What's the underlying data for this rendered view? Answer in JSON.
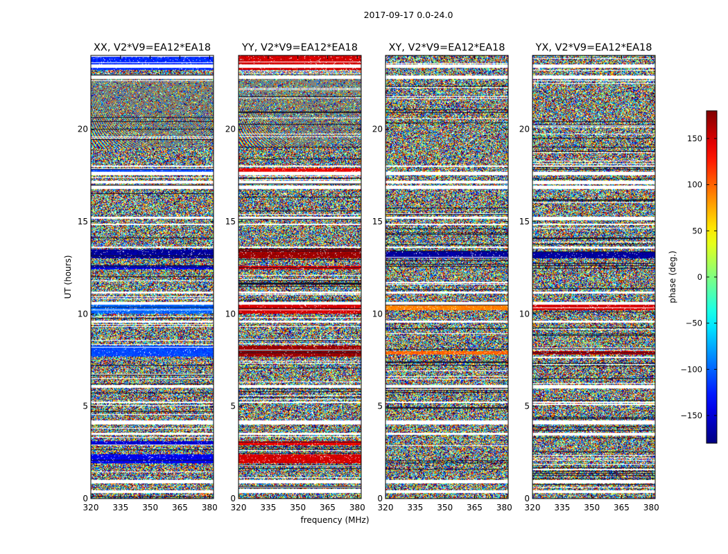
{
  "figure_title": "2017-09-17 0.0-24.0",
  "chart_data": {
    "type": "heatmap",
    "title": "2017-09-17 0.0-24.0",
    "xlabel": "frequency (MHz)",
    "ylabel": "UT (hours)",
    "xlim": [
      320,
      382
    ],
    "ylim": [
      0,
      24
    ],
    "xticks": [
      320,
      335,
      350,
      365,
      380
    ],
    "yticks": [
      0,
      5,
      10,
      15,
      20
    ],
    "colormap": "jet",
    "colorbar": {
      "label": "phase (deg.)",
      "range": [
        -180,
        180
      ],
      "ticks": [
        150,
        100,
        50,
        0,
        -50,
        -100,
        -150
      ],
      "tick_labels": [
        "150",
        "100",
        "50",
        "0",
        "−50",
        "−100",
        "−150"
      ]
    },
    "panels": [
      {
        "title": "XX, V2*V9=EA12*EA18",
        "show_ylabel": true,
        "show_xlabel": false,
        "coherent_bands": [
          {
            "t0": 23.2,
            "t1": 24.0,
            "phase": -120
          },
          {
            "t0": 17.7,
            "t1": 17.9,
            "phase": -110
          },
          {
            "t0": 13.0,
            "t1": 13.5,
            "phase": -170
          },
          {
            "t0": 12.4,
            "t1": 12.6,
            "phase": -140
          },
          {
            "t0": 10.0,
            "t1": 10.6,
            "phase": -100
          },
          {
            "t0": 7.7,
            "t1": 8.3,
            "phase": -110
          },
          {
            "t0": 2.9,
            "t1": 3.1,
            "phase": -150
          },
          {
            "t0": 1.9,
            "t1": 2.4,
            "phase": -140
          }
        ],
        "fringe_region": [
          19.0,
          23.0
        ]
      },
      {
        "title": "YY, V2*V9=EA12*EA18",
        "show_ylabel": false,
        "show_xlabel": true,
        "coherent_bands": [
          {
            "t0": 23.2,
            "t1": 24.0,
            "phase": 150
          },
          {
            "t0": 17.7,
            "t1": 17.9,
            "phase": 140
          },
          {
            "t0": 13.0,
            "t1": 13.5,
            "phase": 170
          },
          {
            "t0": 12.4,
            "t1": 12.6,
            "phase": 150
          },
          {
            "t0": 10.0,
            "t1": 10.6,
            "phase": 150
          },
          {
            "t0": 7.7,
            "t1": 8.3,
            "phase": 170
          },
          {
            "t0": 2.9,
            "t1": 3.1,
            "phase": 140
          },
          {
            "t0": 1.9,
            "t1": 2.4,
            "phase": 150
          }
        ],
        "fringe_region": [
          19.0,
          23.0
        ]
      },
      {
        "title": "XY, V2*V9=EA12*EA18",
        "show_ylabel": false,
        "show_xlabel": false,
        "coherent_bands": [
          {
            "t0": 13.0,
            "t1": 13.4,
            "phase": -170
          },
          {
            "t0": 10.2,
            "t1": 10.5,
            "phase": 90
          },
          {
            "t0": 7.8,
            "t1": 8.0,
            "phase": 100
          }
        ],
        "fringe_region": null
      },
      {
        "title": "YX, V2*V9=EA12*EA18",
        "show_ylabel": false,
        "show_xlabel": false,
        "coherent_bands": [
          {
            "t0": 13.0,
            "t1": 13.4,
            "phase": -170
          },
          {
            "t0": 10.2,
            "t1": 10.5,
            "phase": 150
          },
          {
            "t0": 7.8,
            "t1": 8.0,
            "phase": 160
          }
        ],
        "fringe_region": null
      }
    ],
    "flagged_gaps_ut": [
      [
        0.85,
        1.0
      ],
      [
        0.35,
        0.45
      ],
      [
        3.5,
        3.55
      ],
      [
        4.05,
        4.25
      ],
      [
        5.2,
        5.25
      ],
      [
        6.05,
        6.15
      ],
      [
        9.55,
        9.65
      ],
      [
        10.55,
        10.65
      ],
      [
        11.15,
        11.2
      ],
      [
        13.6,
        13.65
      ],
      [
        14.85,
        14.9
      ],
      [
        15.2,
        15.25
      ],
      [
        16.8,
        16.95
      ],
      [
        17.1,
        17.2
      ],
      [
        17.55,
        17.7
      ],
      [
        18.0,
        18.05
      ],
      [
        22.75,
        22.9
      ],
      [
        23.35,
        23.5
      ]
    ]
  }
}
